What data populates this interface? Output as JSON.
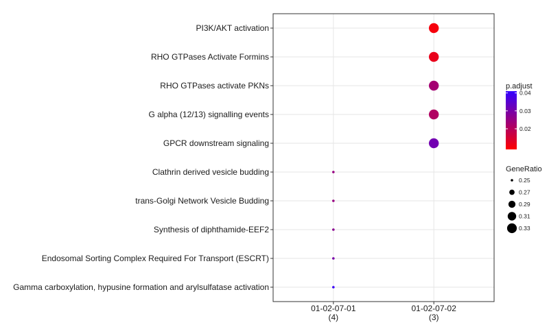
{
  "chart_data": {
    "type": "scatter",
    "title": "",
    "xlabel": "",
    "ylabel": "",
    "x_categories": [
      {
        "label": "01-02-07-01",
        "count": "(4)"
      },
      {
        "label": "01-02-07-02",
        "count": "(3)"
      }
    ],
    "y_categories": [
      "PI3K/AKT activation",
      "RHO GTPases Activate Formins",
      "RHO GTPases activate PKNs",
      "G alpha (12/13) signalling events",
      "GPCR downstream signaling",
      "Clathrin derived vesicle budding",
      "trans-Golgi Network Vesicle Budding",
      "Synthesis of diphthamide-EEF2",
      "Endosomal Sorting Complex Required For Transport (ESCRT)",
      "Gamma carboxylation, hypusine formation and arylsulfatase activation"
    ],
    "points": [
      {
        "x": "01-02-07-02",
        "y": "PI3K/AKT activation",
        "GeneRatio": 0.333,
        "p_adjust": 0.01
      },
      {
        "x": "01-02-07-02",
        "y": "RHO GTPases Activate Formins",
        "GeneRatio": 0.333,
        "p_adjust": 0.012
      },
      {
        "x": "01-02-07-02",
        "y": "RHO GTPases activate PKNs",
        "GeneRatio": 0.333,
        "p_adjust": 0.023
      },
      {
        "x": "01-02-07-02",
        "y": "G alpha (12/13) signalling events",
        "GeneRatio": 0.333,
        "p_adjust": 0.021
      },
      {
        "x": "01-02-07-02",
        "y": "GPCR downstream signaling",
        "GeneRatio": 0.333,
        "p_adjust": 0.031
      },
      {
        "x": "01-02-07-01",
        "y": "Clathrin derived vesicle budding",
        "GeneRatio": 0.25,
        "p_adjust": 0.025
      },
      {
        "x": "01-02-07-01",
        "y": "trans-Golgi Network Vesicle Budding",
        "GeneRatio": 0.25,
        "p_adjust": 0.025
      },
      {
        "x": "01-02-07-01",
        "y": "Synthesis of diphthamide-EEF2",
        "GeneRatio": 0.25,
        "p_adjust": 0.027
      },
      {
        "x": "01-02-07-01",
        "y": "Endosomal Sorting Complex Required For Transport (ESCRT)",
        "GeneRatio": 0.25,
        "p_adjust": 0.03
      },
      {
        "x": "01-02-07-01",
        "y": "Gamma carboxylation, hypusine formation and arylsulfatase activation",
        "GeneRatio": 0.25,
        "p_adjust": 0.04
      }
    ],
    "color_legend": {
      "title": "p.adjust",
      "range": [
        0.0085,
        0.041
      ],
      "ticks": [
        "0.04",
        "0.03",
        "0.02"
      ],
      "tick_values": [
        0.04,
        0.03,
        0.02
      ],
      "low_color": "#ff0000",
      "high_color": "#3300ff"
    },
    "size_legend": {
      "title": "GeneRatio",
      "range": [
        0.25,
        0.333
      ],
      "labels": [
        "0.25",
        "0.27",
        "0.29",
        "0.31",
        "0.33"
      ],
      "values": [
        0.25,
        0.27,
        0.29,
        0.31,
        0.33
      ]
    },
    "grid": true,
    "legend_position": "right"
  }
}
